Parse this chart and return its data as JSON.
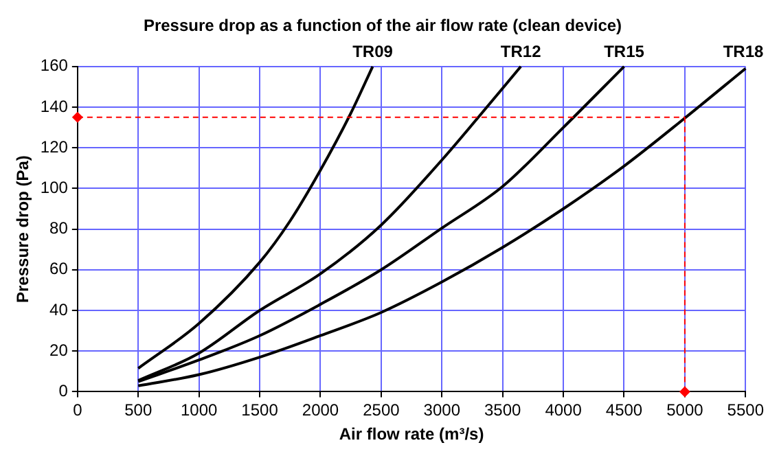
{
  "chart_data": {
    "type": "line",
    "title": "Pressure drop as a function of the air flow rate (clean device)",
    "xlabel": "Air flow rate (m³/s)",
    "ylabel": "Pressure drop (Pa)",
    "xlim": [
      0,
      5500
    ],
    "xticks": [
      0,
      500,
      1000,
      1500,
      2000,
      2500,
      3000,
      3500,
      4000,
      4500,
      5000,
      5500
    ],
    "ylim": [
      0,
      160
    ],
    "yticks": [
      0,
      20,
      40,
      60,
      80,
      100,
      120,
      140,
      160
    ],
    "grid": true,
    "legend": false,
    "marker": "none",
    "line_style": "solid",
    "series": [
      {
        "name": "TR09",
        "color": "#000000",
        "x": [
          500,
          1000,
          1500,
          1750,
          2000,
          2250,
          2430
        ],
        "values": [
          11.5,
          33.6,
          63.7,
          84,
          109,
          137,
          160
        ]
      },
      {
        "name": "TR12",
        "color": "#000000",
        "x": [
          500,
          1000,
          1500,
          2000,
          2500,
          3000,
          3300,
          3650
        ],
        "values": [
          5.5,
          19,
          40,
          58,
          82,
          114,
          135,
          160
        ]
      },
      {
        "name": "TR15",
        "color": "#000000",
        "x": [
          500,
          1000,
          1500,
          2000,
          2500,
          3000,
          3500,
          4000,
          4500
        ],
        "values": [
          5,
          15.6,
          27.6,
          43,
          60,
          80.5,
          101,
          130,
          160
        ]
      },
      {
        "name": "TR18",
        "color": "#000000",
        "x": [
          500,
          1000,
          1500,
          2000,
          2500,
          3000,
          3500,
          4000,
          4500,
          5000,
          5500
        ],
        "values": [
          2.9,
          8.4,
          17,
          27.6,
          39,
          54,
          71,
          90,
          111,
          134.6,
          159
        ]
      },
      {
        "type": "scatter",
        "marker": "diamond",
        "color": "#ff0000",
        "x": [
          0,
          5000
        ],
        "values": [
          135,
          0
        ]
      }
    ],
    "ref_lines": [
      {
        "axis": "y",
        "value": 135,
        "color": "#ff0000",
        "line_style": "dashed"
      },
      {
        "axis": "x",
        "value": 5000,
        "color": "#ff0000",
        "line_style": "dashed"
      }
    ]
  }
}
